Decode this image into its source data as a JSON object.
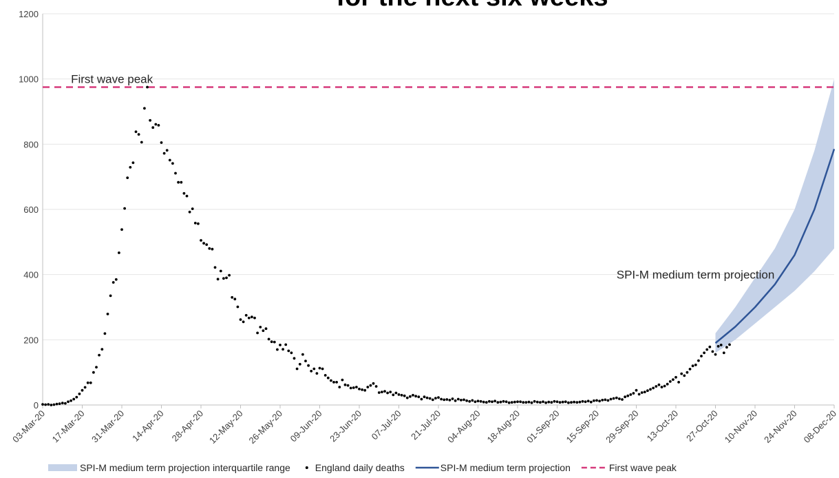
{
  "chart_data": {
    "type": "scatter",
    "title": "for the next six weeks",
    "x_tick_labels": [
      "03-Mar-20",
      "17-Mar-20",
      "31-Mar-20",
      "14-Apr-20",
      "28-Apr-20",
      "12-May-20",
      "26-May-20",
      "09-Jun-20",
      "23-Jun-20",
      "07-Jul-20",
      "21-Jul-20",
      "04-Aug-20",
      "18-Aug-20",
      "01-Sep-20",
      "15-Sep-20",
      "29-Sep-20",
      "13-Oct-20",
      "27-Oct-20",
      "10-Nov-20",
      "24-Nov-20",
      "08-Dec-20"
    ],
    "y_tick_labels": [
      "0",
      "200",
      "400",
      "600",
      "800",
      "1000",
      "1200"
    ],
    "ylim": [
      0,
      1200
    ],
    "xlim": [
      "03-Mar-20",
      "08-Dec-20"
    ],
    "grid": "horizontal",
    "legend_position": "bottom",
    "annotations": [
      {
        "text": "First wave peak",
        "x": "13-Mar-20",
        "y": 1000
      },
      {
        "text": "SPI-M medium term projection",
        "x": "22-Sep-20",
        "y": 400
      }
    ],
    "legend": [
      {
        "label": "SPI-M medium term projection interquartile range",
        "kind": "band"
      },
      {
        "label": "England daily deaths",
        "kind": "dot"
      },
      {
        "label": "SPI-M medium term projection",
        "kind": "line"
      },
      {
        "label": "First wave peak",
        "kind": "dashed"
      }
    ],
    "first_wave_peak": 975,
    "deaths": {
      "start_date": "03-Mar-20",
      "values": [
        2,
        1,
        2,
        0,
        1,
        3,
        4,
        6,
        5,
        10,
        13,
        18,
        24,
        34,
        45,
        54,
        68,
        68,
        100,
        116,
        153,
        171,
        219,
        279,
        335,
        376,
        385,
        467,
        538,
        603,
        697,
        729,
        743,
        838,
        830,
        806,
        910,
        975,
        873,
        851,
        861,
        858,
        805,
        772,
        781,
        751,
        741,
        711,
        683,
        683,
        649,
        641,
        592,
        602,
        558,
        556,
        505,
        496,
        492,
        480,
        478,
        422,
        386,
        411,
        388,
        390,
        398,
        330,
        325,
        301,
        262,
        255,
        275,
        267,
        270,
        267,
        221,
        239,
        228,
        234,
        202,
        194,
        193,
        170,
        184,
        171,
        185,
        166,
        160,
        143,
        111,
        125,
        155,
        135,
        121,
        104,
        111,
        97,
        113,
        111,
        91,
        83,
        75,
        70,
        70,
        55,
        77,
        62,
        60,
        52,
        53,
        55,
        49,
        47,
        45,
        55,
        60,
        66,
        57,
        38,
        40,
        42,
        37,
        40,
        31,
        37,
        32,
        30,
        28,
        22,
        26,
        30,
        27,
        25,
        18,
        25,
        22,
        20,
        16,
        21,
        23,
        18,
        16,
        17,
        15,
        19,
        13,
        18,
        15,
        16,
        13,
        11,
        14,
        10,
        12,
        11,
        9,
        8,
        11,
        10,
        12,
        8,
        9,
        11,
        10,
        7,
        8,
        9,
        10,
        10,
        8,
        8,
        9,
        7,
        11,
        9,
        8,
        10,
        7,
        9,
        8,
        11,
        10,
        8,
        9,
        10,
        7,
        8,
        9,
        8,
        9,
        11,
        10,
        12,
        9,
        13,
        14,
        12,
        15,
        16,
        14,
        18,
        20,
        22,
        19,
        17,
        25,
        28,
        32,
        36,
        45,
        33,
        38,
        40,
        44,
        48,
        52,
        57,
        62,
        55,
        58,
        64,
        72,
        78,
        85,
        70,
        96,
        90,
        100,
        110,
        120,
        123,
        136,
        150,
        160,
        170,
        178,
        164,
        155,
        180,
        184,
        160,
        177,
        185
      ]
    },
    "projection": {
      "x": [
        "27-Oct-20",
        "03-Nov-20",
        "10-Nov-20",
        "17-Nov-20",
        "24-Nov-20",
        "01-Dec-20",
        "08-Dec-20"
      ],
      "median": [
        190,
        240,
        300,
        370,
        460,
        600,
        785
      ],
      "lower": [
        160,
        200,
        250,
        300,
        350,
        410,
        480
      ],
      "upper": [
        220,
        300,
        390,
        480,
        600,
        780,
        1000
      ]
    },
    "colors": {
      "dots": "#000000",
      "projection_line": "#2F5597",
      "band": "#C5D2E8",
      "peak_line": "#D63A7B",
      "grid": "#e6e6e6",
      "axis": "#bfbfbf",
      "text": "#404040"
    }
  }
}
